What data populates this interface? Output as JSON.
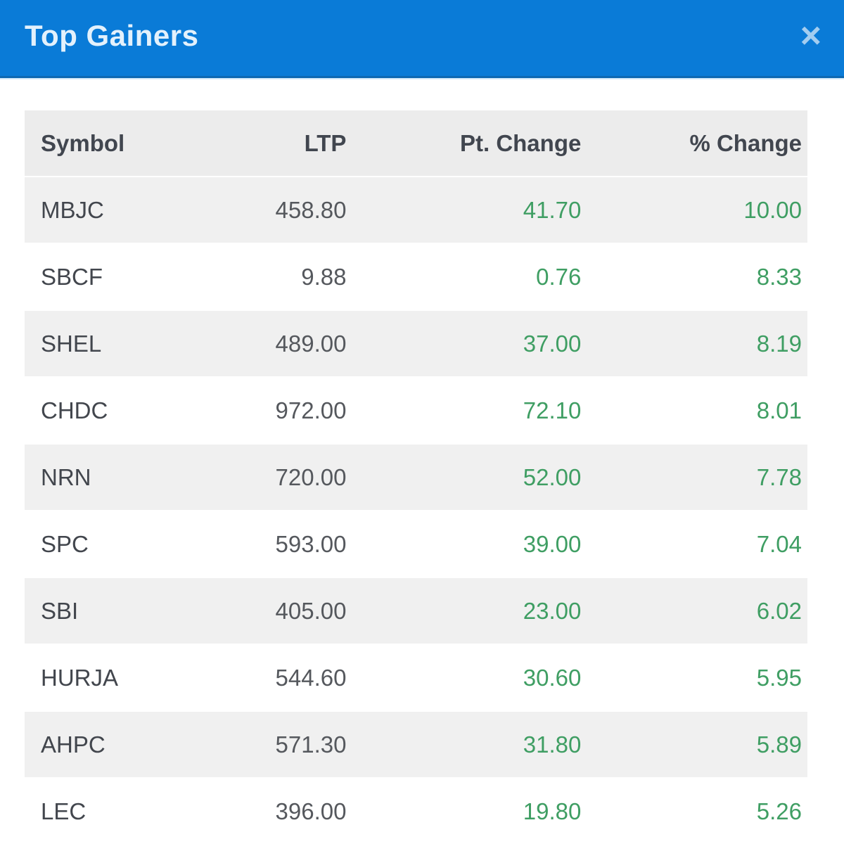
{
  "modal": {
    "title": "Top Gainers",
    "close_icon_glyph": "×"
  },
  "table": {
    "columns": [
      {
        "key": "symbol",
        "label": "Symbol",
        "align": "left"
      },
      {
        "key": "ltp",
        "label": "LTP",
        "align": "right"
      },
      {
        "key": "pt_change",
        "label": "Pt. Change",
        "align": "right"
      },
      {
        "key": "pct_change",
        "label": "% Change",
        "align": "right"
      }
    ],
    "rows": [
      {
        "symbol": "MBJC",
        "ltp": "458.80",
        "pt_change": "41.70",
        "pct_change": "10.00"
      },
      {
        "symbol": "SBCF",
        "ltp": "9.88",
        "pt_change": "0.76",
        "pct_change": "8.33"
      },
      {
        "symbol": "SHEL",
        "ltp": "489.00",
        "pt_change": "37.00",
        "pct_change": "8.19"
      },
      {
        "symbol": "CHDC",
        "ltp": "972.00",
        "pt_change": "72.10",
        "pct_change": "8.01"
      },
      {
        "symbol": "NRN",
        "ltp": "720.00",
        "pt_change": "52.00",
        "pct_change": "7.78"
      },
      {
        "symbol": "SPC",
        "ltp": "593.00",
        "pt_change": "39.00",
        "pct_change": "7.04"
      },
      {
        "symbol": "SBI",
        "ltp": "405.00",
        "pt_change": "23.00",
        "pct_change": "6.02"
      },
      {
        "symbol": "HURJA",
        "ltp": "544.60",
        "pt_change": "30.60",
        "pct_change": "5.95"
      },
      {
        "symbol": "AHPC",
        "ltp": "571.30",
        "pt_change": "31.80",
        "pct_change": "5.89"
      },
      {
        "symbol": "LEC",
        "ltp": "396.00",
        "pt_change": "19.80",
        "pct_change": "5.26"
      }
    ]
  },
  "colors": {
    "header_background": "#0a7bd7",
    "header_border": "#0d68b2",
    "title_text": "#e3f1fc",
    "close_icon": "#a3cdf0",
    "table_header_background": "#ececec",
    "table_header_text": "#41464f",
    "row_alt_background": "#f0f0f0",
    "symbol_text": "#42464d",
    "ltp_text": "#55585d",
    "positive_change": "#3f9e63"
  }
}
